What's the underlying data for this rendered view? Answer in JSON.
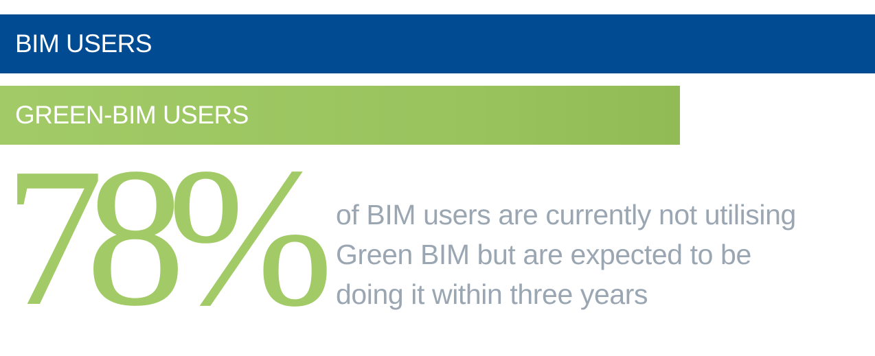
{
  "chart_data": {
    "type": "bar",
    "categories": [
      "BIM USERS",
      "GREEN-BIM USERS"
    ],
    "values": [
      100,
      78
    ],
    "xlim": [
      0,
      100
    ],
    "colors": [
      "#004b91",
      "#a2cb67"
    ]
  },
  "stat": {
    "value": "78%",
    "caption_lines": [
      "of BIM users are currently not utilising",
      "Green BIM but are expected to be",
      "doing it within three years"
    ],
    "value_color": "#a2cb67",
    "caption_color": "#9aa6b2"
  }
}
